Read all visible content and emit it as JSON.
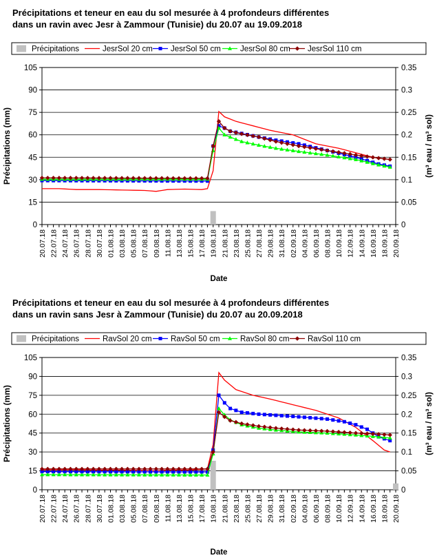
{
  "chart_data": [
    {
      "type": "line",
      "title_line1": "Précipitations et teneur en eau du sol mesurée à 4 profondeurs différentes",
      "title_line2": "dans un ravin avec Jesr à Zammour (Tunisie) du 20.07 au 19.09.2018",
      "xlabel": "Date",
      "ylabel": "Précipitations (mm)",
      "ylabel2": "(m³ eau / m³ sol)",
      "ylim": [
        0,
        105
      ],
      "y_ticks": [
        "0",
        "15",
        "30",
        "45",
        "60",
        "75",
        "90",
        "105"
      ],
      "ylim2": [
        0,
        0.35
      ],
      "y2_ticks": [
        "0",
        "0.05",
        "0.1",
        "0.15",
        "0.2",
        "0.25",
        "0.3",
        "0.35"
      ],
      "grid": "horizontal",
      "legend_position": "top",
      "x_tick_labels": [
        "20.07.18",
        "22.07.18",
        "24.07.18",
        "26.07.18",
        "28.07.18",
        "30.07.18",
        "01.08.18",
        "03.08.18",
        "05.08.18",
        "07.08.18",
        "09.08.18",
        "11.08.18",
        "13.08.18",
        "15.08.18",
        "17.08.18",
        "19.08.18",
        "21.08.18",
        "23.08.18",
        "25.08.18",
        "27.08.18",
        "29.08.18",
        "31.08.18",
        "02.09.18",
        "04.09.18",
        "06.09.18",
        "08.09.18",
        "10.09.18",
        "12.09.18",
        "14.09.18",
        "16.09.18",
        "18.09.18",
        "20.09.18"
      ],
      "x_range_days": [
        0,
        62
      ],
      "precipitation": {
        "name": "Précipitations",
        "color": "#c0c0c0",
        "x": [
          30
        ],
        "values": [
          9
        ]
      },
      "series": [
        {
          "name": "JesrSol 20 cm",
          "color": "#ff0000",
          "marker": "none",
          "x": [
            0,
            3,
            6,
            10,
            14,
            18,
            20,
            22,
            25,
            28,
            29,
            30,
            31,
            32,
            34,
            37,
            40,
            44,
            48,
            52,
            55,
            58,
            61
          ],
          "values": [
            0.08,
            0.08,
            0.078,
            0.078,
            0.077,
            0.076,
            0.074,
            0.078,
            0.079,
            0.078,
            0.08,
            0.12,
            0.252,
            0.24,
            0.23,
            0.22,
            0.21,
            0.2,
            0.18,
            0.17,
            0.16,
            0.15,
            0.145
          ]
        },
        {
          "name": "JesrSol 50 cm",
          "color": "#0000ff",
          "marker": "square",
          "x": [
            0,
            29,
            30,
            31,
            32,
            33,
            35,
            38,
            41,
            45,
            50,
            55,
            59,
            61
          ],
          "values": [
            0.098,
            0.097,
            0.175,
            0.22,
            0.215,
            0.208,
            0.203,
            0.195,
            0.188,
            0.18,
            0.165,
            0.15,
            0.135,
            0.13
          ]
        },
        {
          "name": "JesrSol 80 cm",
          "color": "#00ff00",
          "marker": "triangle",
          "x": [
            0,
            29,
            30,
            31,
            32,
            33,
            35,
            38,
            41,
            45,
            50,
            55,
            59,
            61
          ],
          "values": [
            0.101,
            0.101,
            0.165,
            0.215,
            0.2,
            0.195,
            0.185,
            0.177,
            0.17,
            0.163,
            0.155,
            0.145,
            0.133,
            0.128
          ]
        },
        {
          "name": "JesrSol 110 cm",
          "color": "#8b0000",
          "marker": "diamond",
          "x": [
            0,
            29,
            30,
            31,
            32,
            33,
            35,
            38,
            41,
            45,
            50,
            55,
            59,
            61
          ],
          "values": [
            0.104,
            0.103,
            0.175,
            0.23,
            0.215,
            0.208,
            0.202,
            0.195,
            0.185,
            0.175,
            0.165,
            0.155,
            0.148,
            0.145
          ]
        }
      ]
    },
    {
      "type": "line",
      "title_line1": "Précipitations et teneur en eau du sol mesurée à 4 profondeurs différentes",
      "title_line2": "dans un ravin sans Jesr à Zammour (Tunisie) du 20.07 au 20.09.2018",
      "xlabel": "Date",
      "ylabel": "Précipitations (mm)",
      "ylabel2": "(m³ eau / m³ sol)",
      "ylim": [
        0,
        105
      ],
      "y_ticks": [
        "0",
        "15",
        "30",
        "45",
        "60",
        "75",
        "90",
        "105"
      ],
      "ylim2": [
        0,
        0.35
      ],
      "y2_ticks": [
        "0",
        "0.05",
        "0.1",
        "0.15",
        "0.2",
        "0.25",
        "0.3",
        "0.35"
      ],
      "grid": "horizontal",
      "legend_position": "top",
      "x_tick_labels": [
        "20.07.18",
        "22.07.18",
        "24.07.18",
        "26.07.18",
        "28.07.18",
        "30.07.18",
        "01.08.18",
        "03.08.18",
        "05.08.18",
        "07.08.18",
        "09.08.18",
        "11.08.18",
        "13.08.18",
        "15.08.18",
        "17.08.18",
        "19.08.18",
        "21.08.18",
        "23.08.18",
        "25.08.18",
        "27.08.18",
        "29.08.18",
        "31.08.18",
        "02.09.18",
        "04.09.18",
        "06.09.18",
        "08.09.18",
        "10.09.18",
        "12.09.18",
        "14.09.18",
        "16.09.18",
        "18.09.18",
        "20.09.18"
      ],
      "x_range_days": [
        0,
        62
      ],
      "precipitation": {
        "name": "Précipitations",
        "color": "#c0c0c0",
        "x": [
          30,
          62
        ],
        "values": [
          23,
          5
        ]
      },
      "series": [
        {
          "name": "RavSol 20 cm",
          "color": "#ff0000",
          "marker": "none",
          "x": [
            0,
            5,
            10,
            14,
            18,
            20,
            22,
            26,
            29,
            30,
            31,
            32,
            34,
            37,
            40,
            44,
            48,
            52,
            55,
            58,
            60,
            61
          ],
          "values": [
            0.053,
            0.053,
            0.052,
            0.052,
            0.051,
            0.05,
            0.052,
            0.052,
            0.055,
            0.12,
            0.31,
            0.29,
            0.265,
            0.25,
            0.24,
            0.225,
            0.21,
            0.19,
            0.165,
            0.13,
            0.105,
            0.1
          ]
        },
        {
          "name": "RavSol 50 cm",
          "color": "#0000ff",
          "marker": "square",
          "x": [
            0,
            29,
            30,
            31,
            32,
            33,
            35,
            38,
            41,
            45,
            50,
            53,
            55,
            57,
            59,
            61
          ],
          "values": [
            0.048,
            0.047,
            0.105,
            0.25,
            0.23,
            0.215,
            0.205,
            0.2,
            0.197,
            0.193,
            0.187,
            0.18,
            0.172,
            0.16,
            0.14,
            0.13
          ]
        },
        {
          "name": "RavSol 80 cm",
          "color": "#00ff00",
          "marker": "triangle",
          "x": [
            0,
            29,
            30,
            31,
            32,
            33,
            35,
            38,
            41,
            45,
            50,
            55,
            59,
            61
          ],
          "values": [
            0.04,
            0.039,
            0.095,
            0.215,
            0.198,
            0.185,
            0.172,
            0.163,
            0.158,
            0.153,
            0.15,
            0.145,
            0.14,
            0.137
          ]
        },
        {
          "name": "RavSol 110 cm",
          "color": "#8b0000",
          "marker": "diamond",
          "x": [
            0,
            29,
            30,
            31,
            32,
            33,
            35,
            38,
            41,
            45,
            50,
            55,
            59,
            61
          ],
          "values": [
            0.055,
            0.055,
            0.1,
            0.205,
            0.193,
            0.183,
            0.175,
            0.168,
            0.163,
            0.158,
            0.155,
            0.15,
            0.147,
            0.145
          ]
        }
      ]
    }
  ]
}
